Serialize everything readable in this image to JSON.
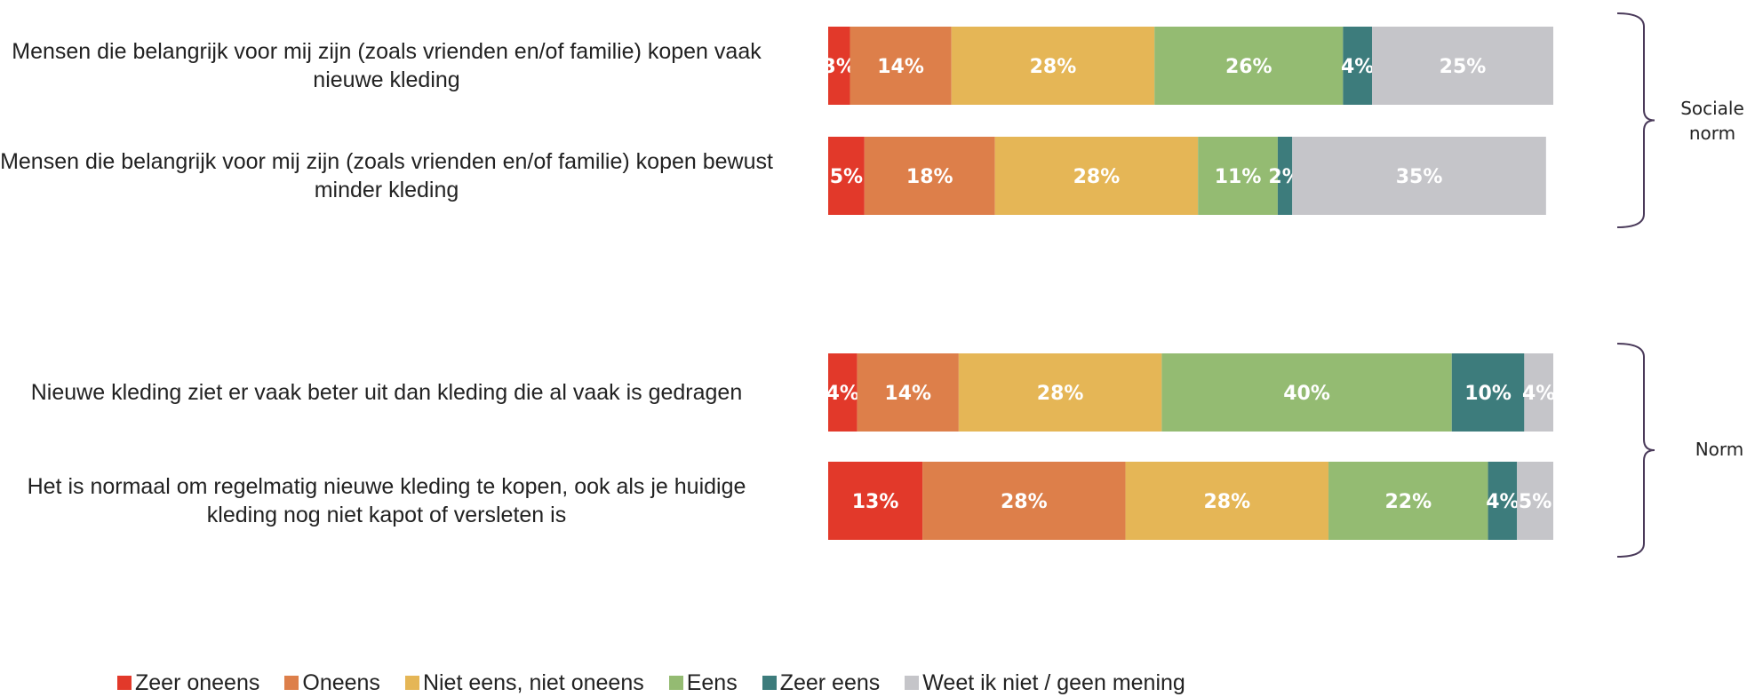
{
  "chart_data": {
    "type": "stacked-bar-horizontal",
    "categories": [
      "Mensen die belangrijk voor mij zijn (zoals vrienden en/of familie) kopen vaak nieuwe kleding",
      "Mensen die belangrijk voor mij zijn (zoals vrienden en/of familie) kopen bewust minder kleding",
      "Nieuwe kleding ziet er vaak beter uit dan kleding die al vaak is gedragen",
      "Het is normaal om regelmatig nieuwe kleding te kopen, ook als je huidige kleding nog niet kapot of versleten is"
    ],
    "xlim": [
      0,
      100
    ],
    "series": [
      {
        "name": "Zeer oneens",
        "color": "#e2392a",
        "values": [
          3,
          5,
          4,
          13
        ],
        "value_labels": [
          "3%",
          "5%",
          "4%",
          "13%"
        ]
      },
      {
        "name": "Oneens",
        "color": "#dd7f4a",
        "values": [
          14,
          18,
          14,
          28
        ],
        "value_labels": [
          "14%",
          "18%",
          "14%",
          "28%"
        ]
      },
      {
        "name": "Niet eens, niet oneens",
        "color": "#e5b656",
        "values": [
          28,
          28,
          28,
          28
        ],
        "value_labels": [
          "28%",
          "28%",
          "28%",
          "28%"
        ]
      },
      {
        "name": "Eens",
        "color": "#94bb72",
        "values": [
          26,
          11,
          40,
          22
        ],
        "value_labels": [
          "26%",
          "11%",
          "40%",
          "22%"
        ]
      },
      {
        "name": "Zeer eens",
        "color": "#3d7c7c",
        "values": [
          4,
          2,
          10,
          4
        ],
        "value_labels": [
          "4%",
          "2%",
          "10%",
          "4%"
        ]
      },
      {
        "name": "Weet ik niet / geen mening",
        "color": "#c5c5c9",
        "values": [
          25,
          35,
          4,
          5
        ],
        "value_labels": [
          "25%",
          "35%",
          "4%",
          "5%"
        ]
      }
    ],
    "groups": [
      {
        "label": "Sociale norm"
      },
      {
        "label": "Norm"
      }
    ]
  }
}
